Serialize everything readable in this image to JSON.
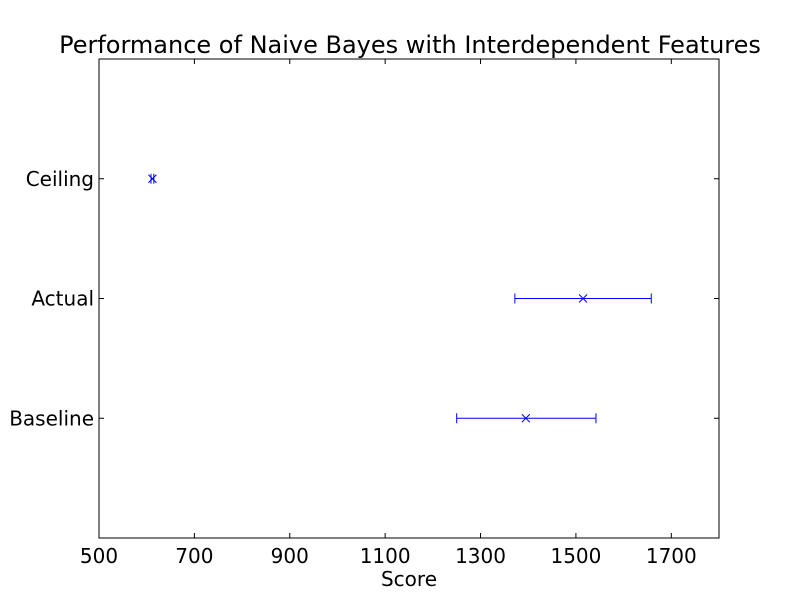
{
  "chart_data": {
    "type": "errorbar",
    "orientation": "horizontal",
    "title": "Performance of Naive Bayes with Interdependent Features",
    "xlabel": "Score",
    "ylabel": "",
    "xlim": [
      500,
      1800
    ],
    "xticks": [
      500,
      700,
      900,
      1100,
      1300,
      1500,
      1700
    ],
    "xtick_labels": [
      "500",
      "700",
      "900",
      "1100",
      "1300",
      "1500",
      "1700"
    ],
    "categories": [
      "Baseline",
      "Actual",
      "Ceiling"
    ],
    "ylim": [
      0,
      4
    ],
    "points": [
      {
        "category": "Baseline",
        "y": 1,
        "x": 1395,
        "xerr_low": 1250,
        "xerr_high": 1542
      },
      {
        "category": "Actual",
        "y": 2,
        "x": 1515,
        "xerr_low": 1372,
        "xerr_high": 1658
      },
      {
        "category": "Ceiling",
        "y": 3,
        "x": 612,
        "xerr_low": 609,
        "xerr_high": 615
      }
    ],
    "marker": "x",
    "color": "#0000ff",
    "grid": false,
    "legend": "none"
  }
}
